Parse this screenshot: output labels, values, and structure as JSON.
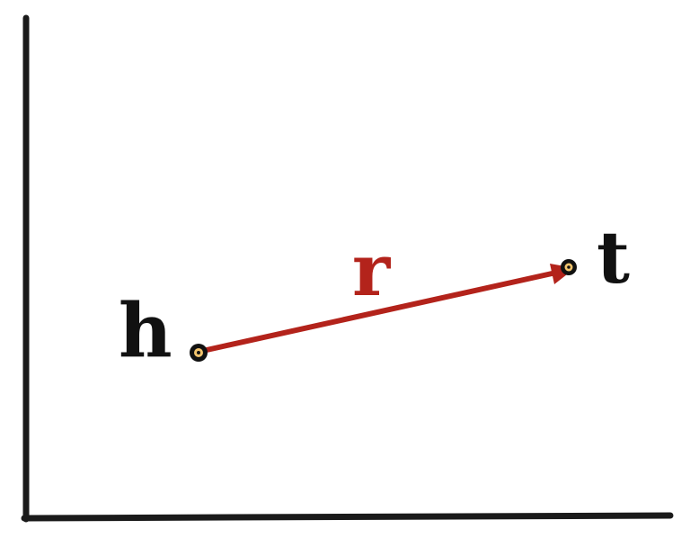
{
  "diagram": {
    "labels": {
      "head": "h",
      "relation": "r",
      "tail": "t"
    },
    "colors": {
      "axis": "#1a1a1a",
      "relation": "#b3231b",
      "node_outline": "#111111",
      "node_fill": "#f2c46d",
      "text": "#111111"
    }
  }
}
